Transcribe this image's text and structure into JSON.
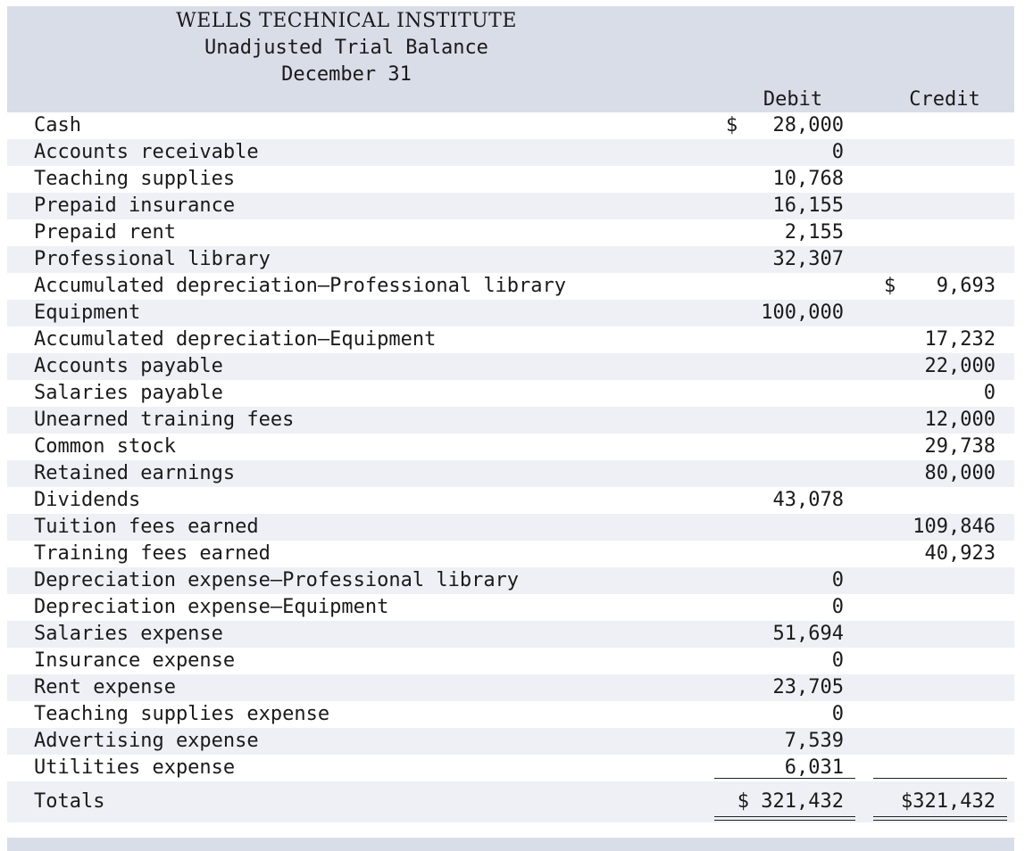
{
  "header": {
    "company": "WELLS TECHNICAL INSTITUTE",
    "statement": "Unadjusted Trial Balance",
    "date": "December 31",
    "debit_label": "Debit",
    "credit_label": "Credit"
  },
  "rows": [
    {
      "account": "Cash",
      "debit": "28,000",
      "credit": "",
      "debit_dollar": "$",
      "credit_dollar": ""
    },
    {
      "account": "Accounts receivable",
      "debit": "0",
      "credit": "",
      "debit_dollar": "",
      "credit_dollar": ""
    },
    {
      "account": "Teaching supplies",
      "debit": "10,768",
      "credit": "",
      "debit_dollar": "",
      "credit_dollar": ""
    },
    {
      "account": "Prepaid insurance",
      "debit": "16,155",
      "credit": "",
      "debit_dollar": "",
      "credit_dollar": ""
    },
    {
      "account": "Prepaid rent",
      "debit": "2,155",
      "credit": "",
      "debit_dollar": "",
      "credit_dollar": ""
    },
    {
      "account": "Professional library",
      "debit": "32,307",
      "credit": "",
      "debit_dollar": "",
      "credit_dollar": ""
    },
    {
      "account": "Accumulated depreciation—Professional library",
      "debit": "",
      "credit": "9,693",
      "debit_dollar": "",
      "credit_dollar": "$"
    },
    {
      "account": "Equipment",
      "debit": "100,000",
      "credit": "",
      "debit_dollar": "",
      "credit_dollar": ""
    },
    {
      "account": "Accumulated depreciation—Equipment",
      "debit": "",
      "credit": "17,232",
      "debit_dollar": "",
      "credit_dollar": ""
    },
    {
      "account": "Accounts payable",
      "debit": "",
      "credit": "22,000",
      "debit_dollar": "",
      "credit_dollar": ""
    },
    {
      "account": "Salaries payable",
      "debit": "",
      "credit": "0",
      "debit_dollar": "",
      "credit_dollar": ""
    },
    {
      "account": "Unearned training fees",
      "debit": "",
      "credit": "12,000",
      "debit_dollar": "",
      "credit_dollar": ""
    },
    {
      "account": "Common stock",
      "debit": "",
      "credit": "29,738",
      "debit_dollar": "",
      "credit_dollar": ""
    },
    {
      "account": "Retained earnings",
      "debit": "",
      "credit": "80,000",
      "debit_dollar": "",
      "credit_dollar": ""
    },
    {
      "account": "Dividends",
      "debit": "43,078",
      "credit": "",
      "debit_dollar": "",
      "credit_dollar": ""
    },
    {
      "account": "Tuition fees earned",
      "debit": "",
      "credit": "109,846",
      "debit_dollar": "",
      "credit_dollar": ""
    },
    {
      "account": "Training fees earned",
      "debit": "",
      "credit": "40,923",
      "debit_dollar": "",
      "credit_dollar": ""
    },
    {
      "account": "Depreciation expense—Professional library",
      "debit": "0",
      "credit": "",
      "debit_dollar": "",
      "credit_dollar": ""
    },
    {
      "account": "Depreciation expense—Equipment",
      "debit": "0",
      "credit": "",
      "debit_dollar": "",
      "credit_dollar": ""
    },
    {
      "account": "Salaries expense",
      "debit": "51,694",
      "credit": "",
      "debit_dollar": "",
      "credit_dollar": ""
    },
    {
      "account": "Insurance expense",
      "debit": "0",
      "credit": "",
      "debit_dollar": "",
      "credit_dollar": ""
    },
    {
      "account": "Rent expense",
      "debit": "23,705",
      "credit": "",
      "debit_dollar": "",
      "credit_dollar": ""
    },
    {
      "account": "Teaching supplies expense",
      "debit": "0",
      "credit": "",
      "debit_dollar": "",
      "credit_dollar": ""
    },
    {
      "account": "Advertising expense",
      "debit": "7,539",
      "credit": "",
      "debit_dollar": "",
      "credit_dollar": ""
    },
    {
      "account": "Utilities expense",
      "debit": "6,031",
      "credit": "",
      "debit_dollar": "",
      "credit_dollar": ""
    }
  ],
  "totals": {
    "label": "Totals",
    "debit": "$ 321,432",
    "credit": "$321,432"
  }
}
